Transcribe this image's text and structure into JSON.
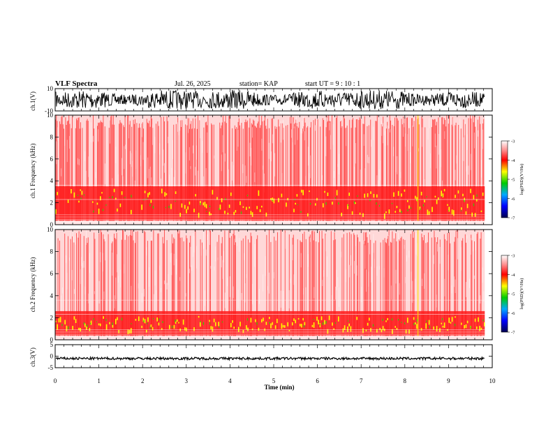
{
  "header": {
    "title": "VLF Spectra",
    "date": "Jul. 26, 2025",
    "station": "station= KAP",
    "start": "start  UT =   9 : 10 : 1"
  },
  "chart_data": [
    {
      "type": "line",
      "panel": "ch.1 waveform",
      "ylabel": "ch.1(V)",
      "ylim": [
        -10,
        10
      ],
      "yticks": [
        "10",
        "-10"
      ],
      "x_range_min": [
        0,
        9.83
      ],
      "description_values": "noise-like broadband waveform spanning roughly -8 to +8 V"
    },
    {
      "type": "heatmap",
      "panel": "ch.1 spectrogram",
      "ylabel": "ch.1 Frequency (kHz)",
      "ylim": [
        0,
        10
      ],
      "yticks": [
        "0",
        "2",
        "4",
        "6",
        "8",
        "10"
      ],
      "colorbar": {
        "label": "log(PSD)(V²/Hz)",
        "range": [
          -7,
          -3
        ],
        "ticks": [
          "-3",
          "-4",
          "-5",
          "-6",
          "-7"
        ]
      },
      "bands_khz": {
        "strong_low": [
          0.5,
          3.5
        ],
        "peak_yellow": [
          1.0,
          2.0
        ]
      },
      "vertical_burst_min": [
        8.3
      ]
    },
    {
      "type": "heatmap",
      "panel": "ch.2 spectrogram",
      "ylabel": "ch.2 Frequency (kHz)",
      "ylim": [
        0,
        10
      ],
      "yticks": [
        "0",
        "2",
        "4",
        "6",
        "8",
        "10"
      ],
      "colorbar": {
        "label": "log(PSD)(V²/Hz)",
        "range": [
          -7,
          -3
        ],
        "ticks": [
          "-3",
          "-4",
          "-5",
          "-6",
          "-7"
        ]
      },
      "bands_khz": {
        "strong_low": [
          0.5,
          2.5
        ],
        "peak_yellow": [
          1.0,
          1.8
        ]
      },
      "vertical_burst_min": [
        8.3
      ]
    },
    {
      "type": "line",
      "panel": "ch.3 waveform",
      "ylabel": "ch.3(V)",
      "ylim": [
        -5,
        5
      ],
      "yticks": [
        "5",
        "0",
        "-5"
      ],
      "values_approx": "constant near -1 V with small fluctuations"
    }
  ],
  "xaxis": {
    "label": "Time  (min)",
    "range": [
      0,
      10
    ],
    "ticks": [
      "0",
      "1",
      "2",
      "3",
      "4",
      "5",
      "6",
      "7",
      "8",
      "9",
      "10"
    ],
    "data_end_min": 9.83
  },
  "colorscale": [
    "#ffffff",
    "#ff6060",
    "#ff0000",
    "#ffff00",
    "#00dd00",
    "#00aaff",
    "#0000ff",
    "#000080"
  ]
}
